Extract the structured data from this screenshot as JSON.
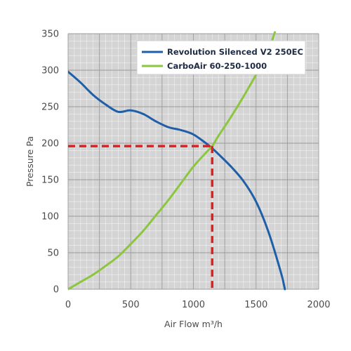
{
  "chart_data": {
    "type": "line",
    "xlabel": "Air Flow m³/h",
    "ylabel": "Pressure Pa",
    "xlim": [
      0,
      2000
    ],
    "ylim": [
      0,
      350
    ],
    "x_ticks": [
      0,
      500,
      1000,
      1500,
      2000
    ],
    "y_ticks": [
      0,
      50,
      100,
      150,
      200,
      250,
      300,
      350
    ],
    "grid": true,
    "legend_position": "top-right",
    "series": [
      {
        "name": "Revolution Silenced V2 250EC",
        "color": "#1f5fa8",
        "x": [
          0,
          100,
          200,
          300,
          400,
          500,
          600,
          700,
          800,
          900,
          1000,
          1100,
          1150,
          1200,
          1300,
          1400,
          1500,
          1600,
          1700,
          1730
        ],
        "y": [
          298,
          283,
          266,
          253,
          243,
          245,
          240,
          230,
          222,
          218,
          212,
          200,
          193,
          185,
          168,
          148,
          120,
          78,
          22,
          0
        ]
      },
      {
        "name": "CarboAir 60-250-1000",
        "color": "#8cc63f",
        "x": [
          0,
          100,
          200,
          300,
          400,
          500,
          600,
          700,
          800,
          900,
          1000,
          1100,
          1150,
          1200,
          1300,
          1400,
          1500,
          1600,
          1650
        ],
        "y": [
          0,
          10,
          20,
          32,
          45,
          62,
          80,
          101,
          122,
          145,
          168,
          187,
          196,
          210,
          236,
          264,
          294,
          328,
          352
        ]
      }
    ],
    "operating_point": {
      "x": 1150,
      "y": 196,
      "color": "#e02020"
    }
  }
}
